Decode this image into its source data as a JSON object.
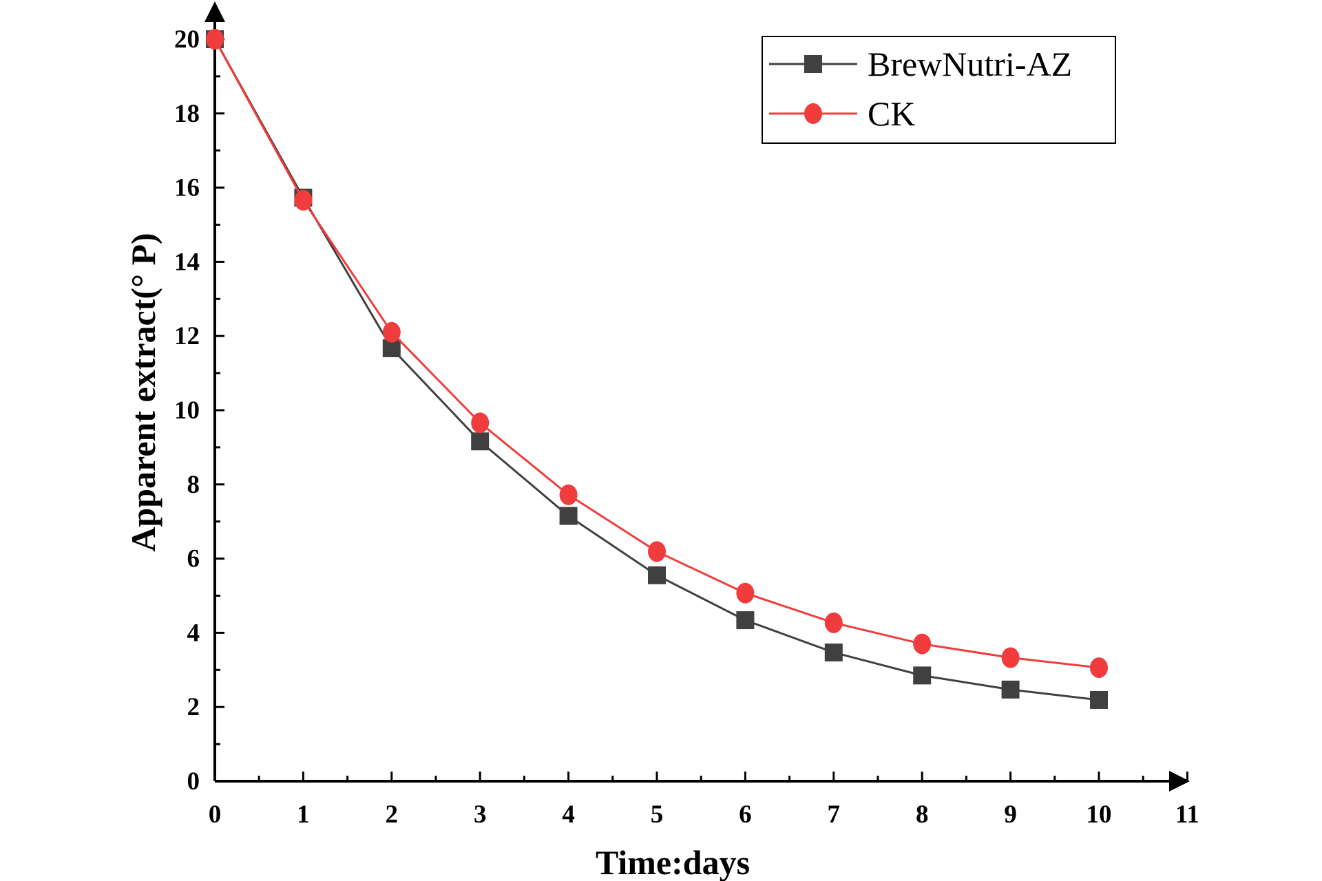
{
  "chart_data": {
    "type": "line",
    "title": "",
    "xlabel": "Time:days",
    "ylabel": "Apparent extract(° P)",
    "xlim": [
      0,
      11
    ],
    "ylim": [
      0,
      20
    ],
    "xticks": [
      "0",
      "1",
      "2",
      "3",
      "4",
      "5",
      "6",
      "7",
      "8",
      "9",
      "10",
      "11"
    ],
    "yticks": [
      "0",
      "2",
      "4",
      "6",
      "8",
      "10",
      "12",
      "14",
      "16",
      "18",
      "20"
    ],
    "grid": false,
    "legend_position": "top-right",
    "x": [
      0,
      1,
      2,
      3,
      4,
      5,
      6,
      7,
      8,
      9,
      10
    ],
    "series": [
      {
        "name": "BrewNutri-AZ",
        "marker": "square",
        "color": "#404040",
        "values": [
          20.0,
          15.73,
          11.67,
          9.16,
          7.15,
          5.55,
          4.34,
          3.47,
          2.85,
          2.47,
          2.19
        ]
      },
      {
        "name": "CK",
        "marker": "circle",
        "color": "#f03c3c",
        "values": [
          20.0,
          15.66,
          12.1,
          9.66,
          7.72,
          6.19,
          5.07,
          4.27,
          3.7,
          3.33,
          3.06
        ]
      }
    ]
  }
}
